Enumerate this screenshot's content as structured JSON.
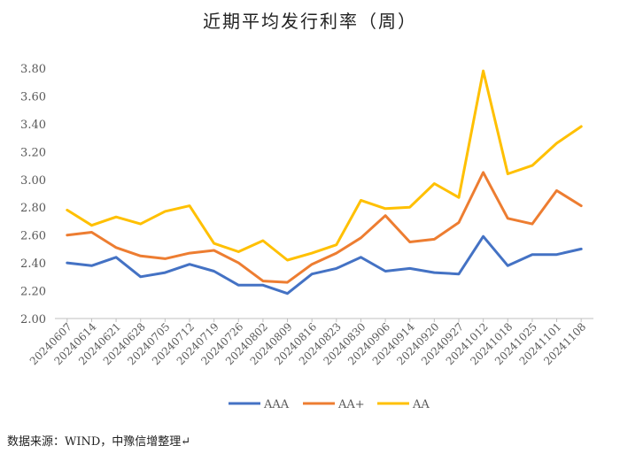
{
  "chart_data": {
    "type": "line",
    "title": "近期平均发行利率（周）",
    "xlabel": "",
    "ylabel": "",
    "ylim": [
      2.0,
      3.8
    ],
    "yticks": [
      "3.80",
      "3.60",
      "3.40",
      "3.20",
      "3.00",
      "2.80",
      "2.60",
      "2.40",
      "2.20",
      "2.00"
    ],
    "categories": [
      "20240607",
      "20240614",
      "20240621",
      "20240628",
      "20240705",
      "20240712",
      "20240719",
      "20240726",
      "20240802",
      "20240809",
      "20240816",
      "20240823",
      "20240830",
      "20240906",
      "20240914",
      "20240920",
      "20240927",
      "20241012",
      "20241018",
      "20241025",
      "20241101",
      "20241108"
    ],
    "series": [
      {
        "name": "AAA",
        "color": "#4472C4",
        "values": [
          2.4,
          2.38,
          2.44,
          2.3,
          2.33,
          2.39,
          2.34,
          2.24,
          2.24,
          2.18,
          2.32,
          2.36,
          2.44,
          2.34,
          2.36,
          2.33,
          2.32,
          2.59,
          2.38,
          2.46,
          2.46,
          2.5
        ]
      },
      {
        "name": "AA+",
        "color": "#ED7D31",
        "values": [
          2.6,
          2.62,
          2.51,
          2.45,
          2.43,
          2.47,
          2.49,
          2.4,
          2.27,
          2.26,
          2.39,
          2.47,
          2.58,
          2.74,
          2.55,
          2.57,
          2.69,
          3.05,
          2.72,
          2.68,
          2.92,
          2.81
        ]
      },
      {
        "name": "AA",
        "color": "#FFC000",
        "values": [
          2.78,
          2.67,
          2.73,
          2.68,
          2.77,
          2.81,
          2.54,
          2.48,
          2.56,
          2.42,
          2.47,
          2.53,
          2.85,
          2.79,
          2.8,
          2.97,
          2.87,
          3.78,
          3.04,
          3.1,
          3.26,
          3.38
        ]
      }
    ],
    "legend_position": "bottom",
    "grid": false
  },
  "source_text": "数据来源：WIND，中豫信增整理↵"
}
